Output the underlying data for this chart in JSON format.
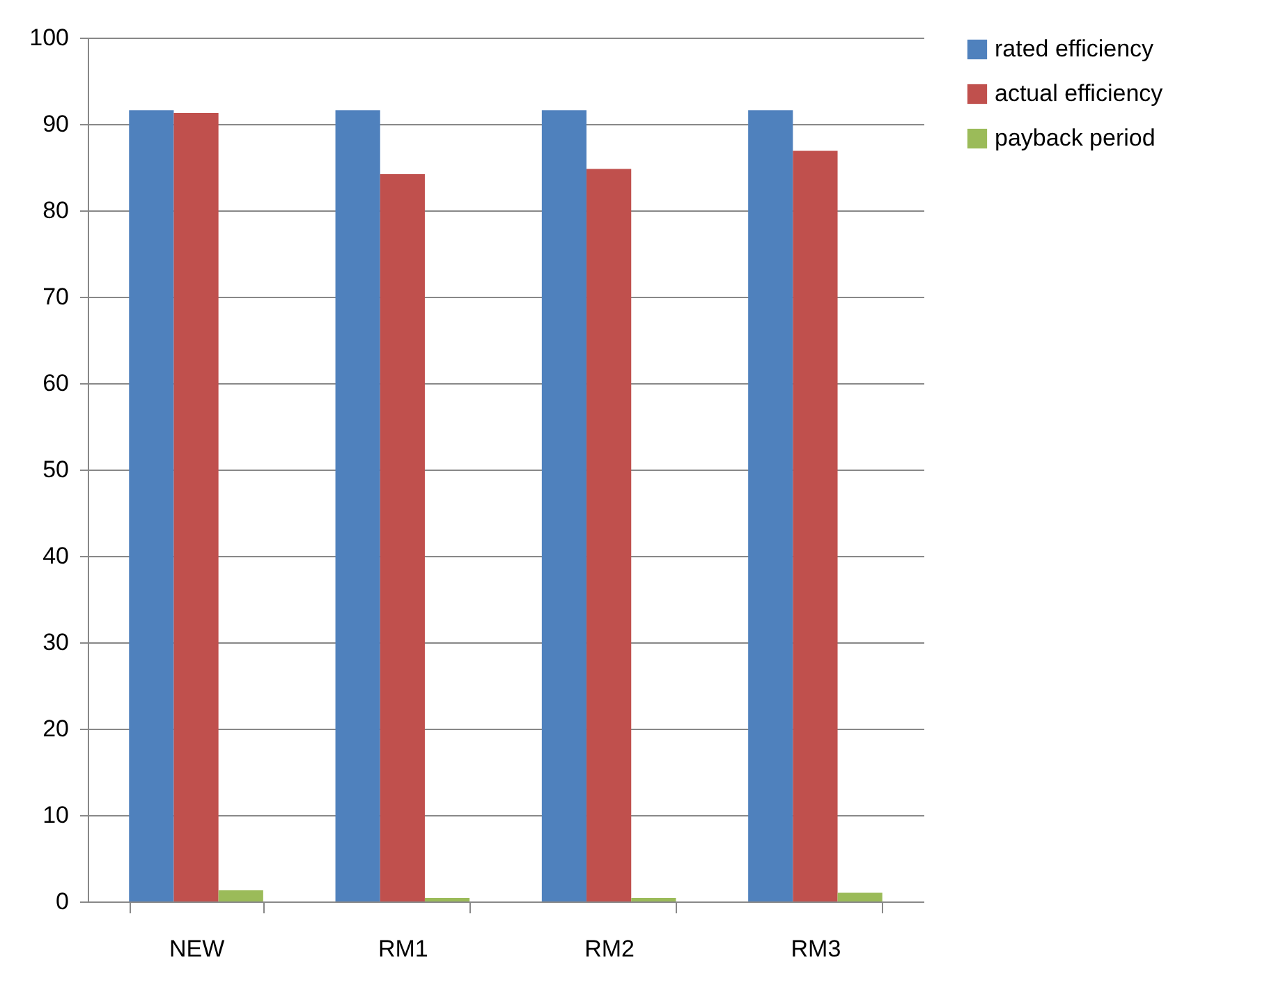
{
  "chart_data": {
    "type": "bar",
    "categories": [
      "NEW",
      "RM1",
      "RM2",
      "RM3"
    ],
    "series": [
      {
        "name": "rated efficiency",
        "color": "#4f81bd",
        "values": [
          91.6,
          91.6,
          91.6,
          91.6
        ]
      },
      {
        "name": "actual efficiency",
        "color": "#c0504d",
        "values": [
          91.3,
          84.2,
          84.8,
          86.9
        ]
      },
      {
        "name": "payback period",
        "color": "#9bbb59",
        "values": [
          1.3,
          0.4,
          0.4,
          1.0
        ]
      }
    ],
    "ylim": [
      0,
      100
    ],
    "yticks": [
      0,
      10,
      20,
      30,
      40,
      50,
      60,
      70,
      80,
      90,
      100
    ],
    "grid": "y",
    "legend": "right"
  }
}
